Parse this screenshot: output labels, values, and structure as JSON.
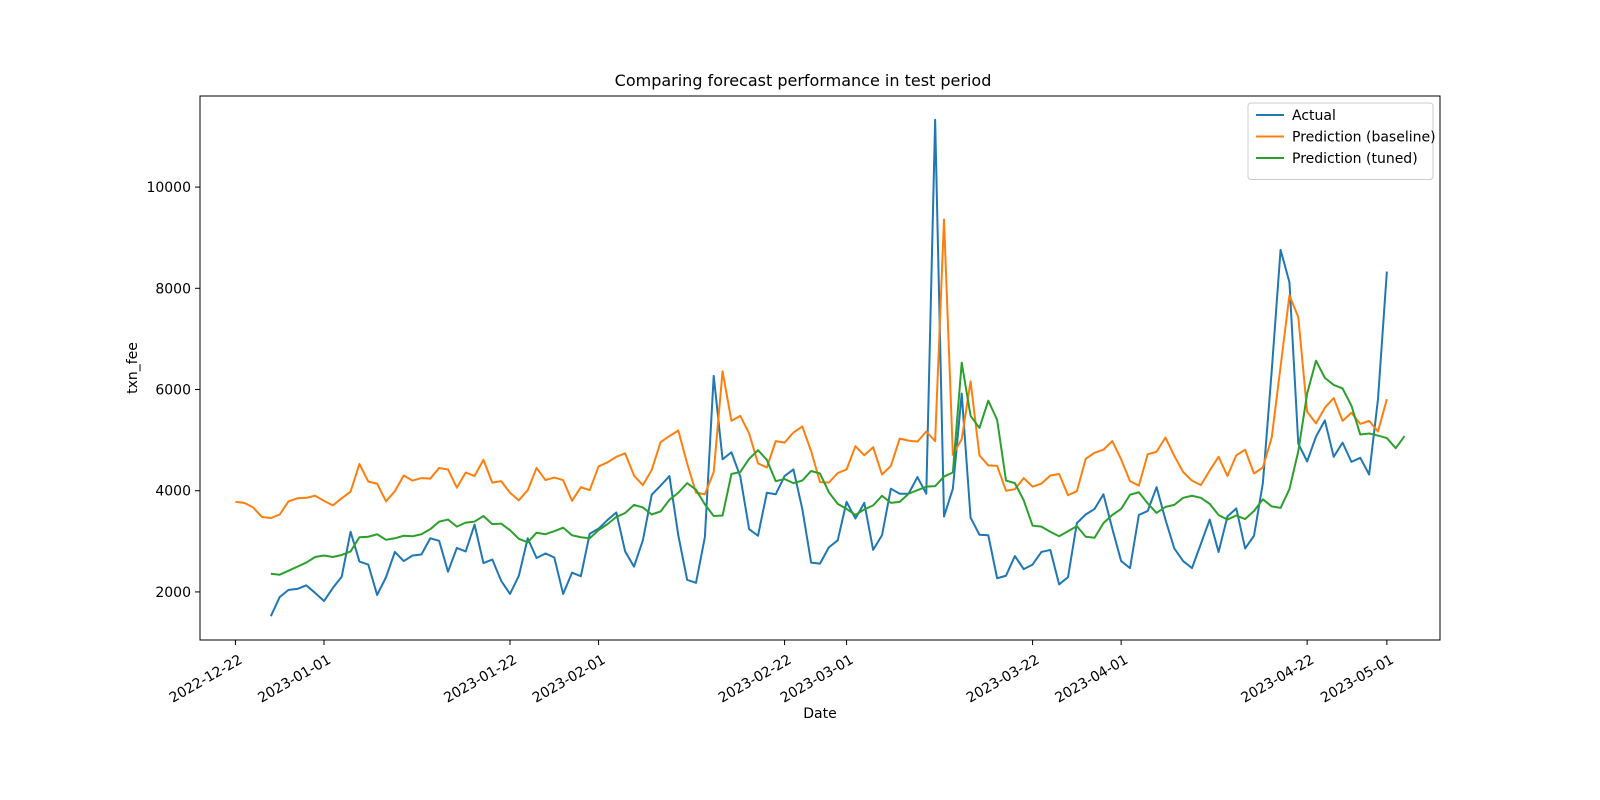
{
  "chart_data": {
    "type": "line",
    "title": "Comparing forecast performance in test period",
    "xlabel": "Date",
    "ylabel": "txn_fee",
    "xlim": [
      "2022-12-18",
      "2023-05-07"
    ],
    "ylim": [
      1050,
      11800
    ],
    "x_ticks": [
      "2022-12-22",
      "2023-01-01",
      "2023-01-22",
      "2023-02-01",
      "2023-02-22",
      "2023-03-01",
      "2023-03-22",
      "2023-04-01",
      "2023-04-22",
      "2023-05-01"
    ],
    "y_ticks": [
      2000,
      4000,
      6000,
      8000,
      10000
    ],
    "grid": false,
    "legend_position": "top-right",
    "colors": {
      "Actual": "#1f77b4",
      "Prediction (baseline)": "#ff7f0e",
      "Prediction (tuned)": "#2ca02c"
    },
    "series": [
      {
        "name": "Actual",
        "start": "2022-12-26",
        "values": [
          1520,
          1900,
          2040,
          2060,
          2130,
          1980,
          1820,
          2080,
          2300,
          3190,
          2600,
          2540,
          1940,
          2290,
          2790,
          2610,
          2720,
          2740,
          3060,
          3010,
          2400,
          2870,
          2800,
          3330,
          2570,
          2640,
          2220,
          1960,
          2320,
          3060,
          2670,
          2760,
          2680,
          1960,
          2380,
          2310,
          3150,
          3250,
          3420,
          3570,
          2800,
          2500,
          3020,
          3920,
          4100,
          4290,
          3120,
          2240,
          2180,
          3080,
          6270,
          4620,
          4760,
          4280,
          3240,
          3110,
          3960,
          3930,
          4290,
          4420,
          3640,
          2580,
          2560,
          2880,
          3020,
          3780,
          3450,
          3760,
          2830,
          3120,
          4040,
          3940,
          3940,
          4270,
          3940,
          11330,
          3490,
          4040,
          5920,
          3470,
          3130,
          3120,
          2270,
          2320,
          2710,
          2450,
          2540,
          2790,
          2830,
          2150,
          2290,
          3360,
          3530,
          3640,
          3930,
          3250,
          2610,
          2470,
          3520,
          3600,
          4070,
          3430,
          2860,
          2610,
          2470,
          2950,
          3430,
          2790,
          3490,
          3650,
          2860,
          3110,
          4150,
          6370,
          8760,
          8120,
          4930,
          4580,
          5070,
          5390,
          4670,
          4950,
          4570,
          4650,
          4320,
          5810,
          8330
        ]
      },
      {
        "name": "Prediction (baseline)",
        "start": "2022-12-22",
        "values": [
          3780,
          3760,
          3670,
          3480,
          3460,
          3530,
          3790,
          3850,
          3860,
          3900,
          3800,
          3710,
          3850,
          3980,
          4530,
          4180,
          4140,
          3790,
          3990,
          4300,
          4200,
          4250,
          4240,
          4450,
          4420,
          4060,
          4360,
          4290,
          4610,
          4160,
          4190,
          3960,
          3810,
          4010,
          4450,
          4210,
          4260,
          4210,
          3800,
          4070,
          4010,
          4480,
          4560,
          4670,
          4740,
          4300,
          4110,
          4410,
          4960,
          5080,
          5190,
          4540,
          3960,
          3930,
          4370,
          6360,
          5380,
          5480,
          5130,
          4540,
          4460,
          4980,
          4950,
          5150,
          5270,
          4780,
          4170,
          4160,
          4350,
          4420,
          4880,
          4700,
          4860,
          4320,
          4490,
          5030,
          4990,
          4970,
          5170,
          4980,
          9360,
          4710,
          5020,
          6160,
          4700,
          4500,
          4490,
          4000,
          4030,
          4250,
          4080,
          4140,
          4300,
          4330,
          3910,
          3990,
          4630,
          4750,
          4810,
          4980,
          4620,
          4190,
          4100,
          4720,
          4770,
          5050,
          4690,
          4370,
          4200,
          4110,
          4400,
          4670,
          4290,
          4700,
          4810,
          4340,
          4460,
          5050,
          6450,
          7860,
          7430,
          5560,
          5330,
          5640,
          5830,
          5380,
          5540,
          5320,
          5380,
          5170,
          5810
        ]
      },
      {
        "name": "Prediction (tuned)",
        "start": "2022-12-26",
        "values": [
          2360,
          2340,
          2420,
          2500,
          2580,
          2690,
          2720,
          2690,
          2730,
          2800,
          3080,
          3090,
          3140,
          3030,
          3060,
          3110,
          3100,
          3140,
          3240,
          3390,
          3430,
          3290,
          3370,
          3390,
          3500,
          3340,
          3350,
          3220,
          3050,
          2980,
          3170,
          3140,
          3200,
          3270,
          3120,
          3080,
          3060,
          3220,
          3340,
          3480,
          3560,
          3720,
          3670,
          3530,
          3590,
          3820,
          3960,
          4150,
          4020,
          3730,
          3500,
          3510,
          4330,
          4370,
          4630,
          4800,
          4610,
          4190,
          4230,
          4150,
          4200,
          4390,
          4340,
          3970,
          3740,
          3640,
          3520,
          3630,
          3710,
          3900,
          3760,
          3780,
          3940,
          4010,
          4080,
          4090,
          4280,
          4360,
          6530,
          5480,
          5240,
          5780,
          5400,
          4200,
          4150,
          3810,
          3310,
          3290,
          3190,
          3100,
          3200,
          3300,
          3090,
          3070,
          3360,
          3520,
          3640,
          3920,
          3970,
          3750,
          3560,
          3680,
          3720,
          3860,
          3900,
          3860,
          3740,
          3520,
          3430,
          3510,
          3440,
          3600,
          3830,
          3690,
          3660,
          4030,
          4780,
          5920,
          6570,
          6230,
          6090,
          6020,
          5680,
          5110,
          5130,
          5090,
          5040,
          4840,
          5080
        ]
      }
    ]
  }
}
